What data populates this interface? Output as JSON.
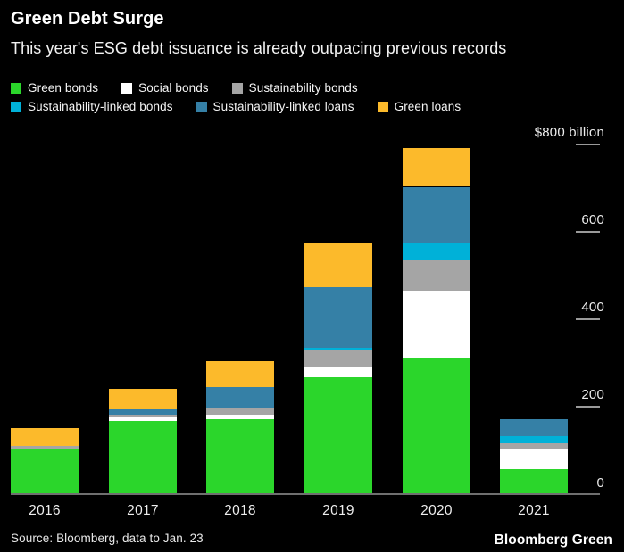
{
  "header": {
    "title": "Green Debt Surge",
    "subtitle": "This year's ESG debt issuance is already outpacing previous records"
  },
  "legend": [
    {
      "label": "Green bonds",
      "color": "#2bd62b"
    },
    {
      "label": "Social bonds",
      "color": "#ffffff"
    },
    {
      "label": "Sustainability bonds",
      "color": "#a5a5a5"
    },
    {
      "label": "Sustainability-linked bonds",
      "color": "#00b1d8"
    },
    {
      "label": "Sustainability-linked loans",
      "color": "#3580a6"
    },
    {
      "label": "Green loans",
      "color": "#fcba2b"
    }
  ],
  "chart_data": {
    "type": "bar",
    "stacked": true,
    "title": "Green Debt Surge",
    "subtitle": "This year's ESG debt issuance is already outpacing previous records",
    "unit": "$ billion",
    "categories": [
      "2016",
      "2017",
      "2018",
      "2019",
      "2020",
      "2021"
    ],
    "series": [
      {
        "name": "Green bonds",
        "color": "#2bd62b",
        "values": [
          100,
          165,
          170,
          265,
          308,
          55
        ]
      },
      {
        "name": "Social bonds",
        "color": "#ffffff",
        "values": [
          3,
          8,
          10,
          22,
          155,
          45
        ]
      },
      {
        "name": "Sustainability bonds",
        "color": "#a5a5a5",
        "values": [
          5,
          6,
          13,
          40,
          70,
          15
        ]
      },
      {
        "name": "Sustainability-linked bonds",
        "color": "#00b1d8",
        "values": [
          0,
          0,
          0,
          5,
          38,
          15
        ]
      },
      {
        "name": "Sustainability-linked loans",
        "color": "#3580a6",
        "values": [
          0,
          12,
          50,
          140,
          130,
          40
        ]
      },
      {
        "name": "Green loans",
        "color": "#fcba2b",
        "values": [
          40,
          48,
          60,
          100,
          88,
          0
        ]
      }
    ],
    "ylim": [
      0,
      800
    ],
    "grid": false,
    "legend_position": "top",
    "y_axis": {
      "ticks": [
        {
          "value": 800,
          "label": "$800 billion"
        },
        {
          "value": 600,
          "label": "600"
        },
        {
          "value": 400,
          "label": "400"
        },
        {
          "value": 200,
          "label": "200"
        },
        {
          "value": 0,
          "label": "0"
        }
      ]
    }
  },
  "footer": {
    "source": "Source: Bloomberg, data to Jan. 23",
    "brand": "Bloomberg Green"
  }
}
